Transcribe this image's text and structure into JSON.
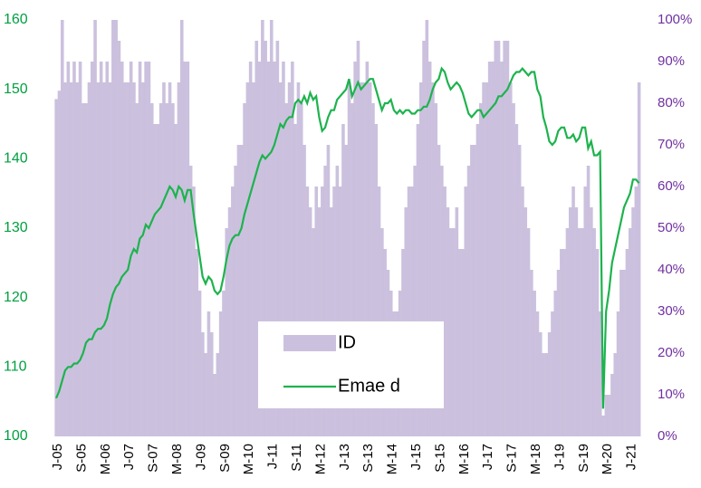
{
  "chart_data": {
    "type": "combo",
    "categories": [
      "J-05",
      null,
      null,
      null,
      null,
      null,
      null,
      null,
      "S-05",
      null,
      null,
      null,
      null,
      null,
      null,
      null,
      "M-06",
      null,
      null,
      null,
      null,
      null,
      null,
      null,
      "J-07",
      null,
      null,
      null,
      null,
      null,
      null,
      null,
      "S-07",
      null,
      null,
      null,
      null,
      null,
      null,
      null,
      "M-08",
      null,
      null,
      null,
      null,
      null,
      null,
      null,
      "J-09",
      null,
      null,
      null,
      null,
      null,
      null,
      null,
      "S-09",
      null,
      null,
      null,
      null,
      null,
      null,
      null,
      "M-10",
      null,
      null,
      null,
      null,
      null,
      null,
      null,
      "J-11",
      null,
      null,
      null,
      null,
      null,
      null,
      null,
      "S-11",
      null,
      null,
      null,
      null,
      null,
      null,
      null,
      "M-12",
      null,
      null,
      null,
      null,
      null,
      null,
      null,
      "J-13",
      null,
      null,
      null,
      null,
      null,
      null,
      null,
      "S-13",
      null,
      null,
      null,
      null,
      null,
      null,
      null,
      "M-14",
      null,
      null,
      null,
      null,
      null,
      null,
      null,
      "J-15",
      null,
      null,
      null,
      null,
      null,
      null,
      null,
      "S-15",
      null,
      null,
      null,
      null,
      null,
      null,
      null,
      "M-16",
      null,
      null,
      null,
      null,
      null,
      null,
      null,
      "J-17",
      null,
      null,
      null,
      null,
      null,
      null,
      null,
      "S-17",
      null,
      null,
      null,
      null,
      null,
      null,
      null,
      "M-18",
      null,
      null,
      null,
      null,
      null,
      null,
      null,
      "J-19",
      null,
      null,
      null,
      null,
      null,
      null,
      null,
      "S-19",
      null,
      null,
      null,
      null,
      null,
      null,
      null,
      "M-20",
      null,
      null,
      null,
      null,
      null,
      null,
      null,
      "J-21",
      null,
      null,
      null
    ],
    "series": [
      {
        "name": "ID",
        "color": "#cbc1de",
        "axis": "y2",
        "values": [
          81,
          83,
          100,
          85,
          90,
          85,
          90,
          85,
          90,
          80,
          80,
          85,
          90,
          100,
          85,
          90,
          85,
          90,
          85,
          100,
          100,
          95,
          90,
          85,
          85,
          90,
          85,
          80,
          90,
          85,
          90,
          90,
          80,
          75,
          75,
          80,
          85,
          80,
          85,
          80,
          75,
          85,
          100,
          90,
          90,
          65,
          60,
          45,
          35,
          25,
          20,
          30,
          25,
          15,
          20,
          30,
          35,
          50,
          55,
          60,
          65,
          70,
          70,
          80,
          85,
          90,
          85,
          95,
          90,
          100,
          95,
          90,
          100,
          90,
          95,
          85,
          90,
          80,
          85,
          90,
          75,
          85,
          80,
          70,
          60,
          55,
          50,
          60,
          55,
          60,
          65,
          70,
          55,
          60,
          65,
          60,
          75,
          70,
          85,
          80,
          90,
          95,
          85,
          85,
          90,
          85,
          80,
          75,
          60,
          50,
          45,
          40,
          35,
          30,
          30,
          35,
          45,
          55,
          60,
          60,
          65,
          75,
          85,
          95,
          100,
          90,
          85,
          80,
          70,
          65,
          60,
          55,
          50,
          50,
          55,
          45,
          45,
          60,
          65,
          70,
          70,
          75,
          80,
          85,
          85,
          90,
          90,
          95,
          95,
          90,
          95,
          95,
          85,
          80,
          75,
          70,
          60,
          55,
          50,
          40,
          35,
          30,
          25,
          20,
          20,
          25,
          30,
          35,
          40,
          45,
          45,
          50,
          55,
          60,
          55,
          50,
          50,
          60,
          65,
          55,
          50,
          45,
          30,
          5,
          10,
          10,
          15,
          20,
          30,
          40,
          40,
          45,
          50,
          55,
          60,
          85
        ]
      },
      {
        "name": "Emae d",
        "color": "#1db34d",
        "axis": "y",
        "values": [
          105.5,
          106.5,
          108,
          109.5,
          110,
          110,
          110.5,
          110.5,
          111,
          112,
          113.5,
          114,
          114,
          115,
          115.5,
          115.5,
          116,
          117,
          119,
          120.5,
          121.5,
          122,
          123,
          123.5,
          124,
          126,
          127,
          126.5,
          128.5,
          129,
          130.5,
          130,
          131,
          132,
          132.5,
          133,
          134,
          135,
          136,
          135.5,
          134.5,
          136,
          135.5,
          134,
          135.5,
          135.5,
          132,
          129,
          126,
          123,
          122,
          123,
          122.5,
          121,
          120.5,
          121,
          123,
          125.5,
          127.5,
          128.5,
          129,
          129,
          130,
          132,
          133.5,
          135,
          136.5,
          138,
          139.5,
          140.5,
          140,
          140.5,
          141,
          142,
          143.5,
          145,
          144.5,
          145.5,
          146,
          146,
          148,
          148.5,
          148,
          149,
          148,
          149.5,
          148.5,
          149,
          146,
          144,
          144.5,
          146,
          147,
          147,
          148.5,
          149,
          149.5,
          150,
          151.5,
          149,
          150,
          151,
          150,
          150.5,
          151,
          151.5,
          151.5,
          150,
          148.5,
          147,
          148,
          148,
          148.5,
          147,
          146.5,
          147,
          146.5,
          147,
          147,
          146.5,
          146.5,
          147,
          147,
          147.5,
          147.5,
          148.5,
          150,
          151,
          151.5,
          153,
          152.5,
          151,
          150,
          150.5,
          151,
          150.5,
          149.5,
          148,
          146.5,
          146,
          146.5,
          147,
          147,
          146,
          146.5,
          147,
          147.5,
          148,
          149,
          149,
          149.5,
          150,
          151,
          152,
          152.5,
          152.5,
          153,
          152.5,
          152,
          152.5,
          152.5,
          150,
          149,
          146,
          144.5,
          142.5,
          142,
          142.5,
          144,
          144.5,
          144.5,
          143,
          143,
          143.5,
          142.5,
          143,
          144.5,
          144.5,
          141.5,
          142.5,
          140.5,
          140.5,
          141,
          104,
          118,
          121,
          125,
          127,
          129,
          131,
          133,
          134,
          135,
          137,
          137,
          136.5
        ]
      }
    ],
    "ylim": [
      100,
      160
    ],
    "yticks": [
      100,
      110,
      120,
      130,
      140,
      150,
      160
    ],
    "ytick_color": "#00a040",
    "y2lim": [
      0,
      100
    ],
    "y2ticks": [
      {
        "value": 0,
        "label": "0%"
      },
      {
        "value": 10,
        "label": "10%"
      },
      {
        "value": 20,
        "label": "20%"
      },
      {
        "value": 30,
        "label": "30%"
      },
      {
        "value": 40,
        "label": "40%"
      },
      {
        "value": 50,
        "label": "50%"
      },
      {
        "value": 60,
        "label": "60%"
      },
      {
        "value": 70,
        "label": "70%"
      },
      {
        "value": 80,
        "label": "80%"
      },
      {
        "value": 90,
        "label": "90%"
      },
      {
        "value": 100,
        "label": "100%"
      }
    ],
    "y2tick_color": "#7030a0",
    "legend": "center"
  }
}
